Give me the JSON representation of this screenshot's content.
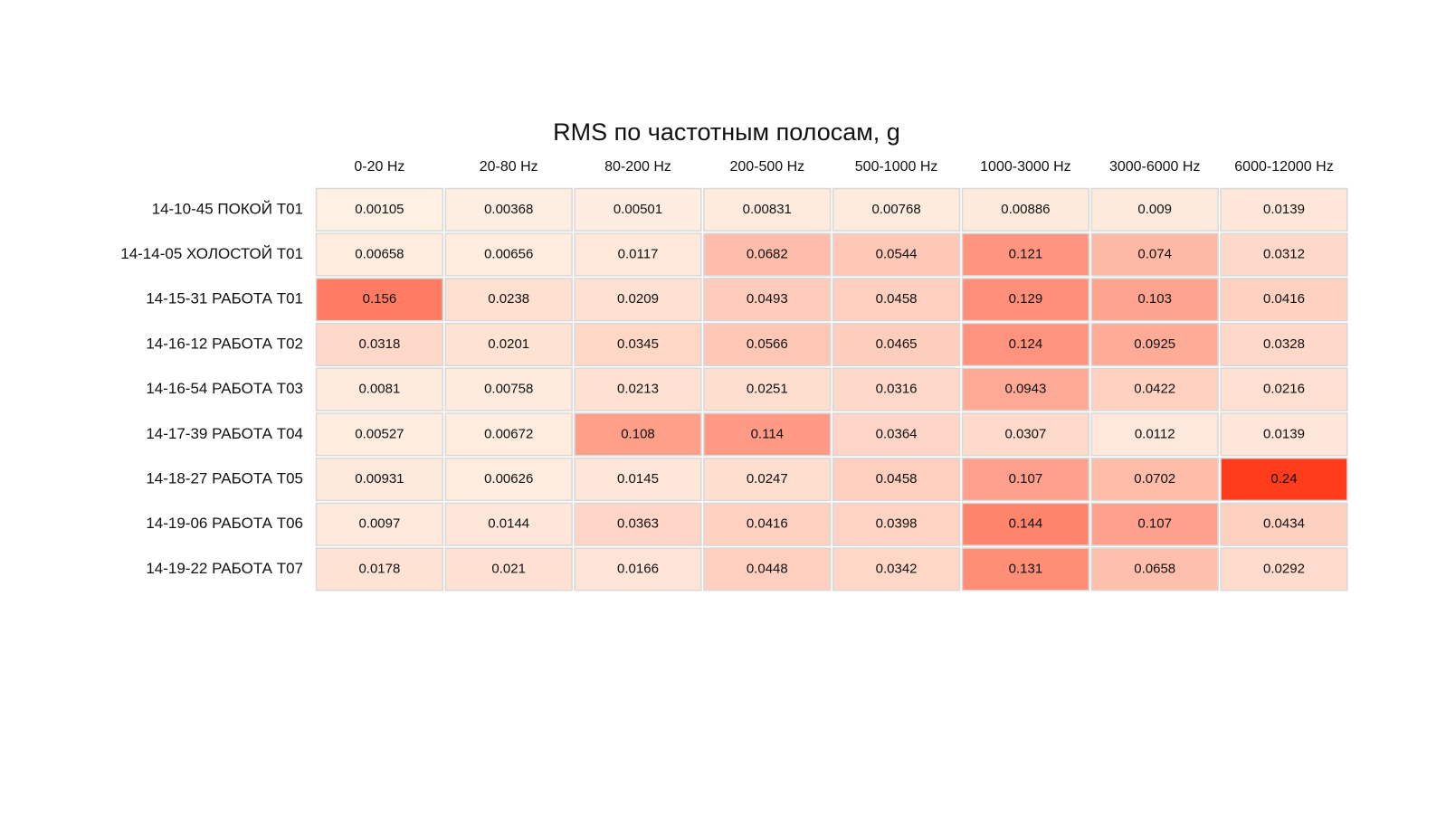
{
  "chart_data": {
    "type": "heatmap",
    "title": "RMS по частотным полосам, g",
    "columns": [
      "0-20 Hz",
      "20-80 Hz",
      "80-200 Hz",
      "200-500 Hz",
      "500-1000 Hz",
      "1000-3000 Hz",
      "3000-6000 Hz",
      "6000-12000 Hz"
    ],
    "rows": [
      "14-10-45 ПОКОЙ T01",
      "14-14-05 ХОЛОСТОЙ T01",
      "14-15-31 РАБОТА T01",
      "14-16-12 РАБОТА T02",
      "14-16-54 РАБОТА T03",
      "14-17-39 РАБОТА T04",
      "14-18-27 РАБОТА T05",
      "14-19-06 РАБОТА T06",
      "14-19-22 РАБОТА T07"
    ],
    "values": [
      [
        0.00105,
        0.00368,
        0.00501,
        0.00831,
        0.00768,
        0.00886,
        0.009,
        0.0139
      ],
      [
        0.00658,
        0.00656,
        0.0117,
        0.0682,
        0.0544,
        0.121,
        0.074,
        0.0312
      ],
      [
        0.156,
        0.0238,
        0.0209,
        0.0493,
        0.0458,
        0.129,
        0.103,
        0.0416
      ],
      [
        0.0318,
        0.0201,
        0.0345,
        0.0566,
        0.0465,
        0.124,
        0.0925,
        0.0328
      ],
      [
        0.0081,
        0.00758,
        0.0213,
        0.0251,
        0.0316,
        0.0943,
        0.0422,
        0.0216
      ],
      [
        0.00527,
        0.00672,
        0.108,
        0.114,
        0.0364,
        0.0307,
        0.0112,
        0.0139
      ],
      [
        0.00931,
        0.00626,
        0.0145,
        0.0247,
        0.0458,
        0.107,
        0.0702,
        0.24
      ],
      [
        0.0097,
        0.0144,
        0.0363,
        0.0416,
        0.0398,
        0.144,
        0.107,
        0.0434
      ],
      [
        0.0178,
        0.021,
        0.0166,
        0.0448,
        0.0342,
        0.131,
        0.0658,
        0.0292
      ]
    ],
    "colormap": [
      "#fef0e3",
      "#ff3b1c"
    ]
  }
}
